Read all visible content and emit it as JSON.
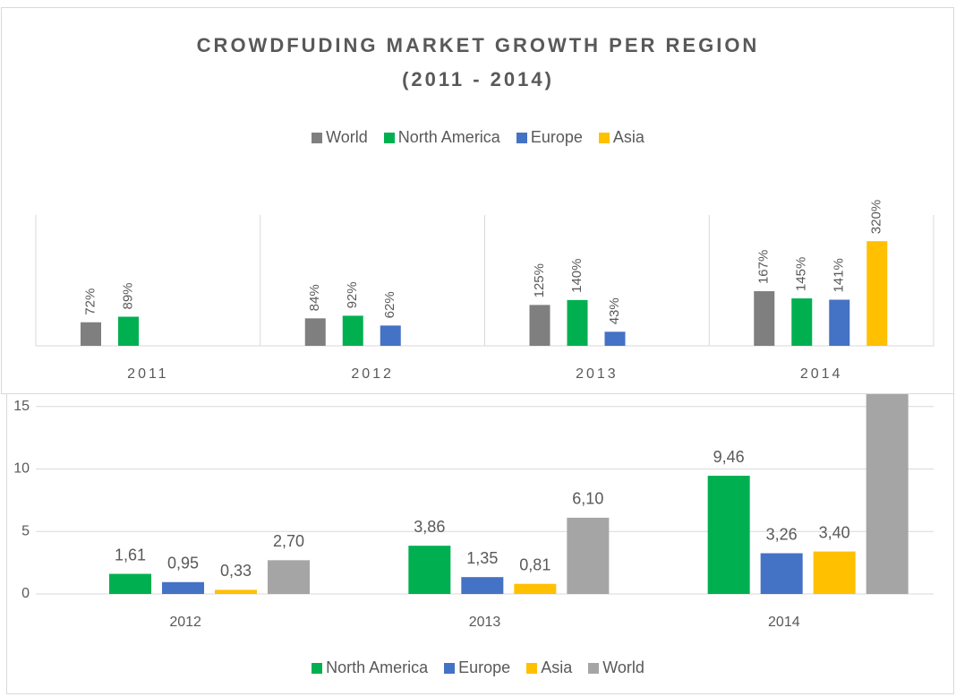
{
  "chart_data": [
    {
      "type": "bar",
      "title": "CROWDFUDING MARKET GROWTH PER REGION",
      "subtitle": "(2011 - 2014)",
      "categories": [
        "2011",
        "2012",
        "2013",
        "2014"
      ],
      "series": [
        {
          "name": "World",
          "color": "#7f7f7f",
          "values": [
            72,
            84,
            125,
            167
          ],
          "value_labels": [
            "72%",
            "84%",
            "125%",
            "167%"
          ]
        },
        {
          "name": "North America",
          "color": "#00b050",
          "values": [
            89,
            92,
            140,
            145
          ],
          "value_labels": [
            "89%",
            "92%",
            "140%",
            "145%"
          ]
        },
        {
          "name": "Europe",
          "color": "#4472c4",
          "values": [
            null,
            62,
            43,
            141
          ],
          "value_labels": [
            null,
            "62%",
            "43%",
            "141%"
          ]
        },
        {
          "name": "Asia",
          "color": "#ffc000",
          "values": [
            null,
            null,
            null,
            320
          ],
          "value_labels": [
            null,
            null,
            null,
            "320%"
          ]
        }
      ],
      "ylim": [
        0,
        400
      ]
    },
    {
      "type": "bar",
      "categories": [
        "2012",
        "2013",
        "2014"
      ],
      "series": [
        {
          "name": "North America",
          "color": "#00b050",
          "values": [
            1.61,
            3.86,
            9.46
          ],
          "value_labels": [
            "1,61",
            "3,86",
            "9,46"
          ]
        },
        {
          "name": "Europe",
          "color": "#4472c4",
          "values": [
            0.95,
            1.35,
            3.26
          ],
          "value_labels": [
            "0,95",
            "1,35",
            "3,26"
          ]
        },
        {
          "name": "Asia",
          "color": "#ffc000",
          "values": [
            0.33,
            0.81,
            3.4
          ],
          "value_labels": [
            "0,33",
            "0,81",
            "3,40"
          ]
        },
        {
          "name": "World",
          "color": "#a5a5a5",
          "values": [
            2.7,
            6.1,
            16.2
          ],
          "value_labels": [
            "2,70",
            "6,10",
            null
          ]
        }
      ],
      "ylim": [
        0,
        20
      ],
      "yticks": [
        0,
        5,
        10,
        15
      ],
      "grid": true
    }
  ]
}
